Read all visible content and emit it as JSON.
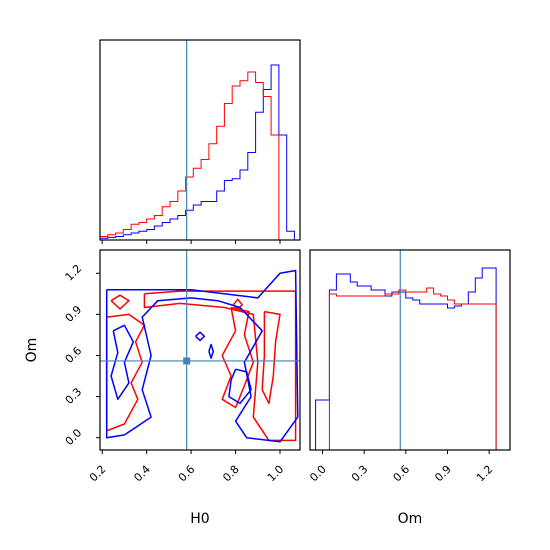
{
  "chart_data": {
    "type": "corner",
    "parameters": [
      "H0",
      "Om"
    ],
    "truths": {
      "H0": 0.58,
      "Om": 0.56
    },
    "colors": {
      "series_a": "#0000ff",
      "series_b": "#ff0000",
      "truth": "#4682b4"
    },
    "panels": {
      "h0_hist": {
        "type": "histogram",
        "x_range": [
          0.19,
          1.09
        ],
        "bin_edges": [
          0.19,
          0.225,
          0.26,
          0.295,
          0.33,
          0.365,
          0.4,
          0.435,
          0.47,
          0.505,
          0.54,
          0.575,
          0.61,
          0.645,
          0.68,
          0.715,
          0.75,
          0.785,
          0.82,
          0.855,
          0.89,
          0.925,
          0.96,
          0.995,
          1.03,
          1.065
        ],
        "series": [
          {
            "color": "blue",
            "values": [
              0.01,
              0.015,
              0.02,
              0.03,
              0.04,
              0.05,
              0.06,
              0.08,
              0.1,
              0.12,
              0.14,
              0.17,
              0.2,
              0.22,
              0.22,
              0.28,
              0.34,
              0.35,
              0.4,
              0.5,
              0.73,
              0.86,
              1.0,
              0.6,
              0.05
            ]
          },
          {
            "color": "red",
            "values": [
              0.02,
              0.03,
              0.04,
              0.06,
              0.09,
              0.1,
              0.12,
              0.14,
              0.19,
              0.22,
              0.28,
              0.36,
              0.41,
              0.46,
              0.55,
              0.65,
              0.78,
              0.88,
              0.91,
              0.96,
              0.9,
              0.82,
              0.6,
              0.0,
              0.0
            ]
          }
        ]
      },
      "om_hist": {
        "type": "histogram",
        "x_range": [
          -0.09,
          1.35
        ],
        "x_ticks": [
          "0.0",
          "0.3",
          "0.6",
          "0.9",
          "1.2"
        ],
        "x_tick_values": [
          0.0,
          0.3,
          0.6,
          0.9,
          1.2
        ],
        "xlabel": "Om",
        "bin_edges": [
          -0.05,
          0.0,
          0.05,
          0.1,
          0.15,
          0.2,
          0.25,
          0.3,
          0.35,
          0.4,
          0.45,
          0.5,
          0.55,
          0.6,
          0.65,
          0.7,
          0.75,
          0.8,
          0.85,
          0.9,
          0.95,
          1.0,
          1.05,
          1.1,
          1.15,
          1.2,
          1.25
        ],
        "series": [
          {
            "color": "blue",
            "values": [
              0.25,
              0.25,
              0.8,
              0.88,
              0.88,
              0.84,
              0.82,
              0.82,
              0.8,
              0.8,
              0.77,
              0.79,
              0.79,
              0.76,
              0.75,
              0.73,
              0.73,
              0.73,
              0.73,
              0.71,
              0.72,
              0.73,
              0.79,
              0.86,
              0.91,
              0.91
            ]
          },
          {
            "color": "red",
            "values": [
              0.0,
              0.0,
              0.78,
              0.77,
              0.77,
              0.77,
              0.77,
              0.77,
              0.77,
              0.77,
              0.78,
              0.78,
              0.8,
              0.79,
              0.79,
              0.79,
              0.81,
              0.78,
              0.77,
              0.75,
              0.73,
              0.73,
              0.73,
              0.73,
              0.73,
              0.73
            ]
          }
        ]
      },
      "joint": {
        "type": "contour",
        "x_range": [
          0.19,
          1.09
        ],
        "y_range": [
          -0.09,
          1.37
        ],
        "x_ticks": [
          "0.2",
          "0.4",
          "0.6",
          "0.8",
          "1.0"
        ],
        "x_tick_values": [
          0.2,
          0.4,
          0.6,
          0.8,
          1.0
        ],
        "y_ticks": [
          "0.0",
          "0.3",
          "0.6",
          "0.9",
          "1.2"
        ],
        "y_tick_values": [
          0.0,
          0.3,
          0.6,
          0.9,
          1.2
        ],
        "xlabel": "H0",
        "ylabel": "Om",
        "contours": [
          {
            "color": "red",
            "points": [
              [
                0.39,
                1.05
              ],
              [
                0.55,
                1.07
              ],
              [
                0.85,
                1.07
              ],
              [
                1.07,
                1.07
              ],
              [
                1.07,
                -0.02
              ],
              [
                0.95,
                -0.02
              ],
              [
                0.88,
                0.15
              ],
              [
                0.9,
                0.55
              ],
              [
                0.88,
                0.9
              ],
              [
                0.75,
                0.95
              ],
              [
                0.55,
                0.98
              ],
              [
                0.39,
                0.95
              ],
              [
                0.39,
                1.05
              ]
            ]
          },
          {
            "color": "red",
            "points": [
              [
                0.22,
                0.88
              ],
              [
                0.32,
                0.9
              ],
              [
                0.39,
                0.82
              ],
              [
                0.35,
                0.7
              ],
              [
                0.38,
                0.55
              ],
              [
                0.33,
                0.4
              ],
              [
                0.36,
                0.28
              ],
              [
                0.3,
                0.1
              ],
              [
                0.22,
                0.05
              ],
              [
                0.22,
                0.88
              ]
            ]
          },
          {
            "color": "red",
            "points": [
              [
                0.78,
                0.95
              ],
              [
                0.86,
                0.92
              ],
              [
                0.84,
                0.75
              ],
              [
                0.88,
                0.55
              ],
              [
                0.84,
                0.38
              ],
              [
                0.8,
                0.22
              ],
              [
                0.74,
                0.28
              ],
              [
                0.78,
                0.45
              ],
              [
                0.74,
                0.6
              ],
              [
                0.8,
                0.78
              ],
              [
                0.78,
                0.95
              ]
            ]
          },
          {
            "color": "red",
            "points": [
              [
                0.93,
                0.92
              ],
              [
                1.0,
                0.9
              ],
              [
                0.98,
                0.7
              ],
              [
                0.97,
                0.45
              ],
              [
                0.95,
                0.25
              ],
              [
                0.92,
                0.35
              ],
              [
                0.93,
                0.6
              ],
              [
                0.93,
                0.92
              ]
            ]
          },
          {
            "color": "red",
            "points": [
              [
                0.24,
                1.0
              ],
              [
                0.28,
                1.04
              ],
              [
                0.32,
                1.0
              ],
              [
                0.28,
                0.94
              ],
              [
                0.24,
                1.0
              ]
            ]
          },
          {
            "color": "red",
            "points": [
              [
                0.79,
                0.97
              ],
              [
                0.81,
                1.01
              ],
              [
                0.83,
                0.97
              ],
              [
                0.81,
                0.94
              ],
              [
                0.79,
                0.97
              ]
            ]
          },
          {
            "color": "blue",
            "points": [
              [
                0.22,
                1.08
              ],
              [
                0.6,
                1.08
              ],
              [
                0.9,
                1.02
              ],
              [
                1.0,
                1.2
              ],
              [
                1.07,
                1.22
              ],
              [
                1.08,
                0.15
              ],
              [
                1.0,
                -0.03
              ],
              [
                0.85,
                0.0
              ],
              [
                0.8,
                0.12
              ],
              [
                0.87,
                0.3
              ],
              [
                0.84,
                0.55
              ],
              [
                0.92,
                0.78
              ],
              [
                0.82,
                0.95
              ],
              [
                0.72,
                1.0
              ],
              [
                0.6,
                1.02
              ],
              [
                0.45,
                1.0
              ],
              [
                0.38,
                0.88
              ],
              [
                0.42,
                0.6
              ],
              [
                0.38,
                0.35
              ],
              [
                0.42,
                0.15
              ],
              [
                0.3,
                0.02
              ],
              [
                0.22,
                0.0
              ],
              [
                0.22,
                1.08
              ]
            ]
          },
          {
            "color": "blue",
            "points": [
              [
                0.25,
                0.78
              ],
              [
                0.3,
                0.82
              ],
              [
                0.34,
                0.7
              ],
              [
                0.3,
                0.55
              ],
              [
                0.32,
                0.4
              ],
              [
                0.27,
                0.28
              ],
              [
                0.24,
                0.45
              ],
              [
                0.27,
                0.62
              ],
              [
                0.25,
                0.78
              ]
            ]
          },
          {
            "color": "blue",
            "points": [
              [
                0.62,
                0.74
              ],
              [
                0.64,
                0.77
              ],
              [
                0.66,
                0.74
              ],
              [
                0.64,
                0.71
              ],
              [
                0.62,
                0.74
              ]
            ]
          },
          {
            "color": "blue",
            "points": [
              [
                0.8,
                0.5
              ],
              [
                0.85,
                0.48
              ],
              [
                0.87,
                0.35
              ],
              [
                0.82,
                0.25
              ],
              [
                0.77,
                0.3
              ],
              [
                0.78,
                0.42
              ],
              [
                0.8,
                0.5
              ]
            ]
          },
          {
            "color": "blue",
            "points": [
              [
                0.68,
                0.63
              ],
              [
                0.69,
                0.68
              ],
              [
                0.7,
                0.63
              ],
              [
                0.69,
                0.58
              ],
              [
                0.68,
                0.63
              ]
            ]
          }
        ]
      }
    }
  }
}
